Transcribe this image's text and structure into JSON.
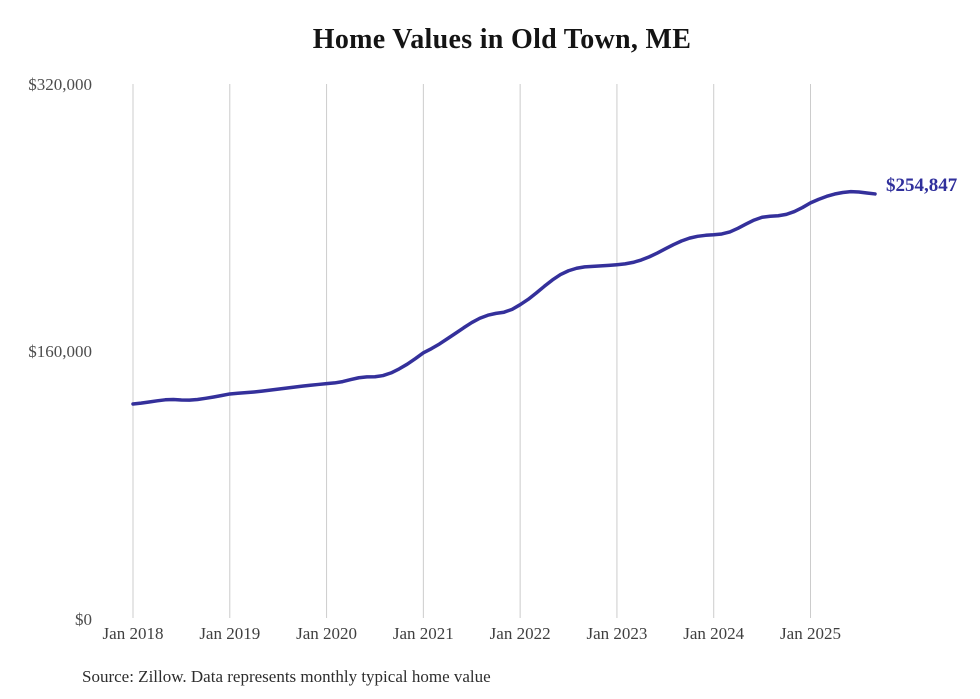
{
  "title": "Home Values in Old Town, ME",
  "source_note": "Source: Zillow. Data represents monthly typical home value",
  "colors": {
    "line": "#34309b",
    "value_label": "#30309c",
    "grid": "#cccccc",
    "title_text": "#141414",
    "axis_text": "#4c4c4c",
    "source_text": "#2e2e2e",
    "background": "#ffffff"
  },
  "chart_data": {
    "type": "line",
    "title": "Home Values in Old Town, ME",
    "xlabel": "",
    "ylabel": "",
    "x_start": "Jan 2018",
    "x_end": "Sep 2025",
    "x_interval": "monthly",
    "x_tick_labels": [
      "Jan 2018",
      "Jan 2019",
      "Jan 2020",
      "Jan 2021",
      "Jan 2022",
      "Jan 2023",
      "Jan 2024",
      "Jan 2025"
    ],
    "y_tick_labels": [
      "$0",
      "$160,000",
      "$320,000"
    ],
    "y_ticks": [
      0,
      160000,
      320000
    ],
    "ylim": [
      0,
      320000
    ],
    "grid": "vertical-only",
    "legend": "none",
    "end_label": "$254,847",
    "final_value": 254847,
    "series": [
      {
        "name": "Typical home value",
        "values": [
          129200,
          129700,
          130400,
          131100,
          131700,
          131900,
          131600,
          131500,
          131900,
          132600,
          133400,
          134300,
          135200,
          135600,
          136000,
          136400,
          136900,
          137500,
          138100,
          138700,
          139300,
          139900,
          140400,
          140900,
          141400,
          141800,
          142600,
          143800,
          144900,
          145400,
          145500,
          146200,
          147800,
          150200,
          153000,
          156300,
          159800,
          162300,
          165100,
          168300,
          171500,
          174800,
          177900,
          180500,
          182300,
          183400,
          184100,
          185800,
          188600,
          191800,
          195600,
          199600,
          203400,
          206600,
          208900,
          210400,
          211200,
          211500,
          211800,
          212100,
          212500,
          213000,
          213900,
          215300,
          217200,
          219500,
          222000,
          224500,
          226700,
          228400,
          229500,
          230100,
          230400,
          230900,
          232100,
          234300,
          236800,
          239200,
          240900,
          241500,
          241800,
          242600,
          244300,
          246700,
          249500,
          251600,
          253400,
          254800,
          255700,
          256200,
          256000,
          255400,
          254847
        ]
      }
    ]
  }
}
